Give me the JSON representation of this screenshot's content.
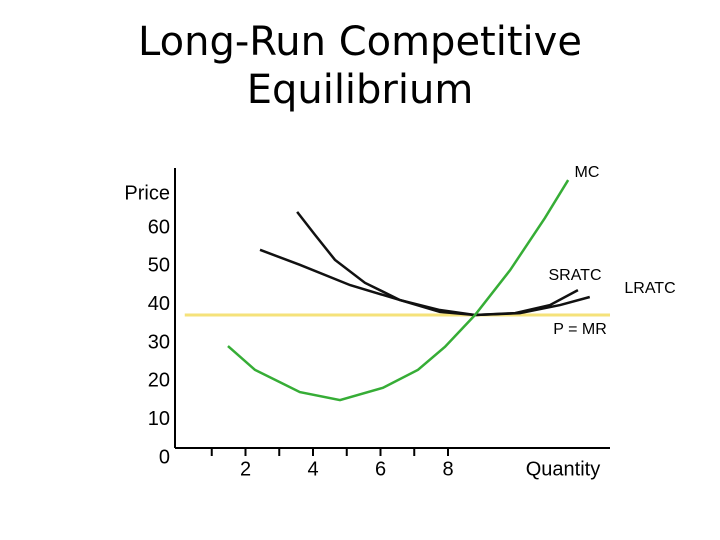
{
  "chart_data": {
    "type": "line",
    "title": "Long-Run Competitive Equilibrium",
    "y_label": "Price",
    "x_label": "Quantity",
    "xlim": [
      0,
      13
    ],
    "ylim": [
      0,
      75
    ],
    "xticks": [
      2,
      4,
      6,
      8
    ],
    "xminor_ticks": [
      1,
      3,
      5,
      7
    ],
    "yticks": [
      0,
      10,
      20,
      30,
      40,
      50,
      60
    ],
    "series": [
      {
        "name": "MC",
        "color": "#36ad36",
        "x": [
          1.48,
          2.28,
          3.61,
          4.8,
          6.07,
          7.11,
          7.91,
          8.8,
          9.84,
          10.87,
          11.56
        ],
        "values": [
          29.2,
          23.0,
          17.2,
          15.1,
          18.3,
          23.0,
          29.0,
          37.3,
          49.0,
          62.6,
          72.5
        ]
      },
      {
        "name": "SRATC",
        "color": "#111111",
        "x": [
          3.53,
          4.06,
          4.65,
          5.54,
          6.58,
          7.76,
          8.8,
          9.99,
          11.02,
          11.85
        ],
        "values": [
          64.2,
          58.2,
          51.7,
          45.7,
          41.2,
          38.1,
          37.3,
          37.8,
          39.9,
          43.8
        ]
      },
      {
        "name": "LRATC",
        "color": "#111111",
        "x": [
          2.43,
          3.61,
          5.1,
          6.58,
          7.76,
          8.8,
          10.13,
          11.32,
          12.2
        ],
        "values": [
          54.3,
          50.4,
          45.1,
          41.2,
          38.6,
          37.3,
          37.8,
          39.9,
          42.0
        ]
      },
      {
        "name": "P = MR",
        "color": "#f5e27a",
        "x": [
          0.2,
          12.8
        ],
        "values": [
          37.3,
          37.3
        ]
      }
    ]
  }
}
